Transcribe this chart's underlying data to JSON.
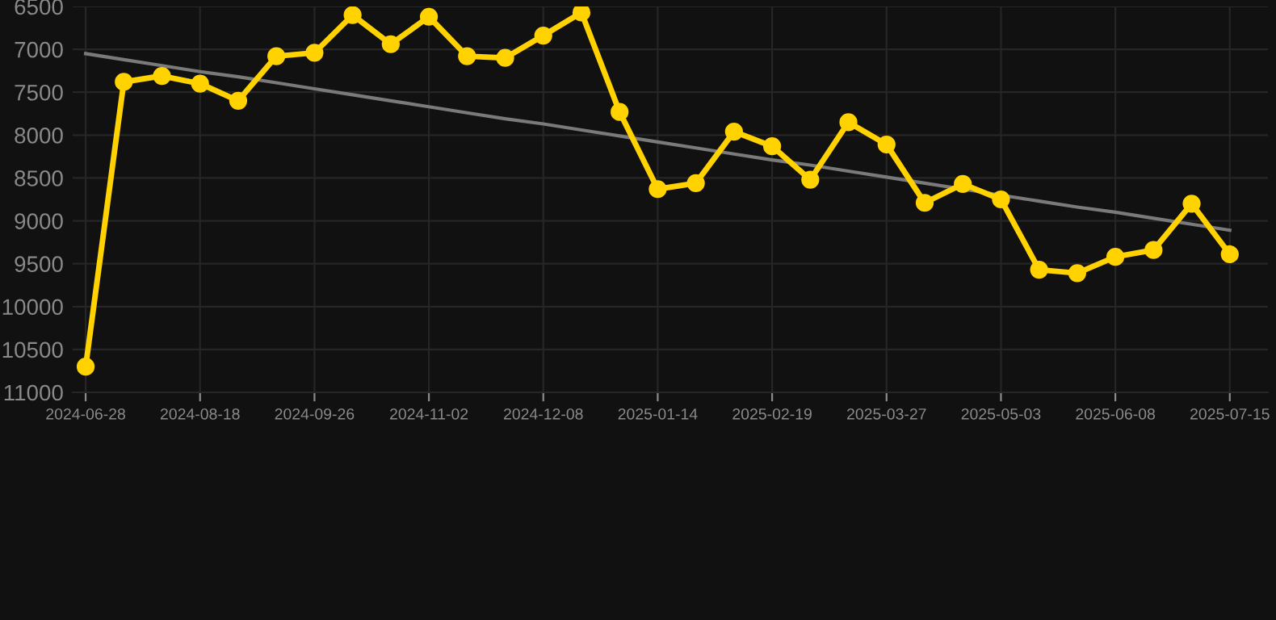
{
  "chart_data": {
    "type": "line",
    "categories": [
      "2024-06-28",
      null,
      null,
      "2024-08-18",
      null,
      null,
      "2024-09-26",
      null,
      null,
      "2024-11-02",
      null,
      null,
      "2024-12-08",
      null,
      null,
      "2025-01-14",
      null,
      null,
      "2025-02-19",
      null,
      null,
      "2025-03-27",
      null,
      null,
      "2025-05-03",
      null,
      null,
      "2025-06-08",
      null,
      null,
      "2025-07-15"
    ],
    "series": [
      {
        "color": "#ffd200",
        "marker": "circle",
        "values": [
          10700,
          7380,
          7310,
          7400,
          7600,
          7080,
          7040,
          6600,
          6940,
          6620,
          7080,
          7100,
          6840,
          6570,
          7730,
          8630,
          8560,
          7960,
          8130,
          8520,
          7850,
          8110,
          8790,
          8570,
          8750,
          9570,
          9610,
          9420,
          9340,
          8800,
          9390
        ]
      },
      {
        "type": "line",
        "color": "#7a7a7a",
        "marker": "none",
        "values": [
          7050,
          7120,
          7190,
          7260,
          7320,
          7390,
          7460,
          7530,
          7600,
          7670,
          7740,
          7810,
          7870,
          7940,
          8010,
          8080,
          8150,
          8220,
          8290,
          8350,
          8420,
          8490,
          8560,
          8630,
          8700,
          8770,
          8840,
          8900,
          8970,
          9040,
          9110
        ]
      }
    ],
    "ylim": [
      11000,
      6500
    ],
    "yticks": [
      6500,
      7000,
      7500,
      8000,
      8500,
      9000,
      9500,
      10000,
      10500,
      11000
    ],
    "grid": true
  }
}
